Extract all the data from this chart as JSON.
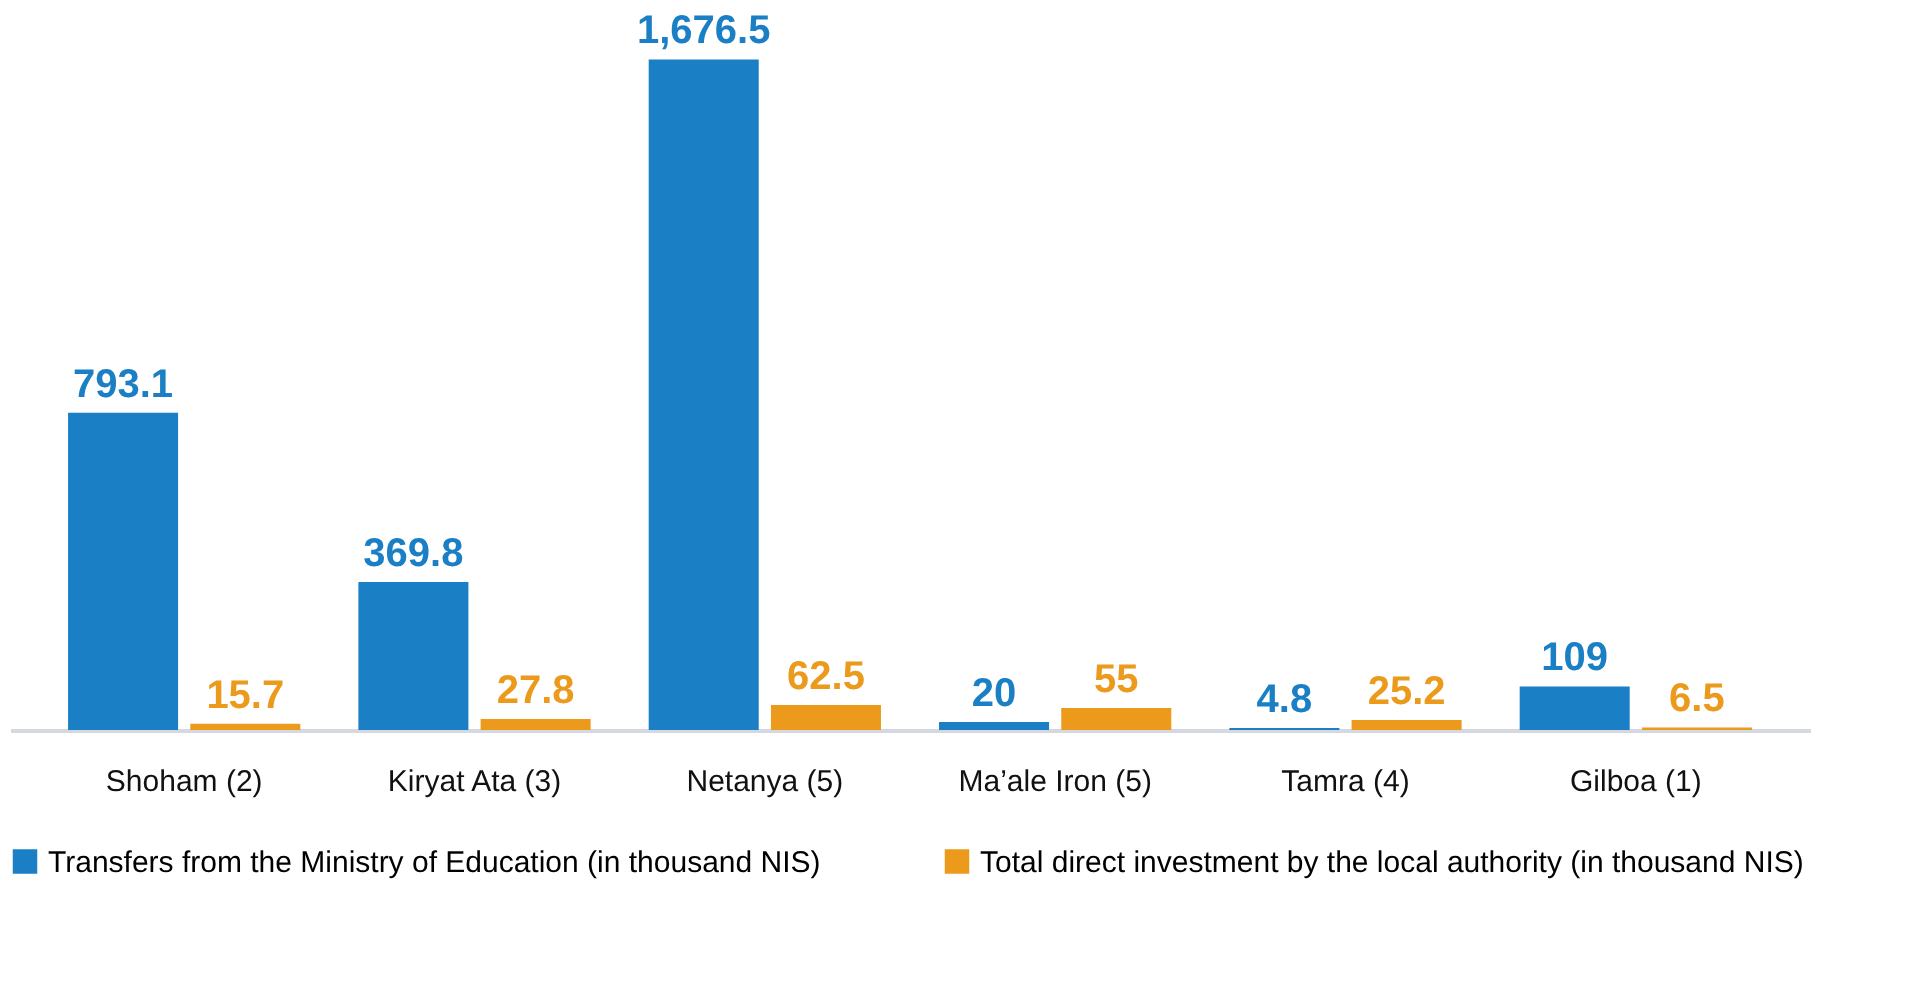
{
  "chart_data": {
    "type": "bar",
    "categories": [
      "Shoham (2)",
      "Kiryat Ata (3)",
      "Netanya (5)",
      "Ma’ale Iron (5)",
      "Tamra (4)",
      "Gilboa (1)"
    ],
    "series": [
      {
        "name": "Transfers from the Ministry of Education (in thousand NIS)",
        "color": "#1a7fc4",
        "values": [
          793.1,
          369.8,
          1676.5,
          20,
          4.8,
          109
        ],
        "value_labels": [
          "793.1",
          "369.8",
          "1,676.5",
          "20",
          "4.8",
          "109"
        ]
      },
      {
        "name": "Total direct investment by the local authority (in thousand NIS)",
        "color": "#eb9a1b",
        "values": [
          15.7,
          27.8,
          62.5,
          55,
          25.2,
          6.5
        ],
        "value_labels": [
          "15.7",
          "27.8",
          "62.5",
          "55",
          "25.2",
          "6.5"
        ]
      }
    ],
    "legend": "bottom"
  }
}
